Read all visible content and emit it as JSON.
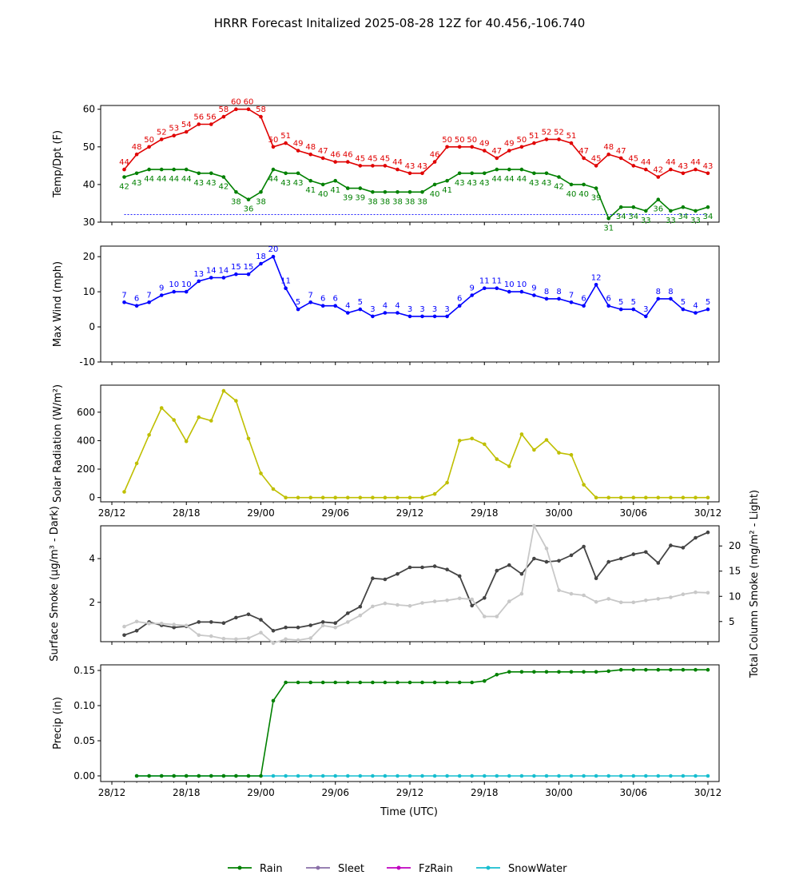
{
  "figure": {
    "title": "HRRR Forecast Initalized 2025-08-28 12Z for 40.456,-106.740",
    "xlabel": "Time (UTC)",
    "x_ticks": [
      {
        "h": 0,
        "label": "28/12"
      },
      {
        "h": 6,
        "label": "28/18"
      },
      {
        "h": 12,
        "label": "29/00"
      },
      {
        "h": 18,
        "label": "29/06"
      },
      {
        "h": 24,
        "label": "29/12"
      },
      {
        "h": 30,
        "label": "29/18"
      },
      {
        "h": 36,
        "label": "30/00"
      },
      {
        "h": 42,
        "label": "30/06"
      },
      {
        "h": 48,
        "label": "30/12"
      }
    ]
  },
  "colors": {
    "temp": "#e00000",
    "dewpoint": "#008000",
    "wind": "#0000ff",
    "solar": "#bfbf00",
    "smoke_dark": "#444444",
    "smoke_light": "#c8c8c8",
    "rain": "#008000",
    "sleet": "#8a6fa8",
    "fzrain": "#c000c0",
    "snowwater": "#17becf"
  },
  "chart_data": [
    {
      "type": "line",
      "ylabel": "Temp/Dpt (F)",
      "ylim": [
        30,
        61
      ],
      "yticks": [
        30,
        40,
        50,
        60
      ],
      "x_hours_start": 1,
      "reference_line": 32,
      "series": [
        {
          "key": "temp",
          "values": [
            44,
            48,
            50,
            52,
            53,
            54,
            56,
            56,
            58,
            60,
            60,
            58,
            50,
            51,
            49,
            48,
            47,
            46,
            46,
            45,
            45,
            45,
            44,
            43,
            43,
            46,
            50,
            50,
            50,
            49,
            47,
            49,
            50,
            51,
            52,
            52,
            51,
            47,
            45,
            48,
            47,
            45,
            44,
            42,
            44,
            43,
            44,
            43
          ]
        },
        {
          "key": "dewpoint",
          "values": [
            42,
            43,
            44,
            44,
            44,
            44,
            43,
            43,
            42,
            38,
            36,
            38,
            44,
            43,
            43,
            41,
            40,
            41,
            39,
            39,
            38,
            38,
            38,
            38,
            38,
            40,
            41,
            43,
            43,
            43,
            44,
            44,
            44,
            43,
            43,
            42,
            40,
            40,
            39,
            31,
            34,
            34,
            33,
            36,
            33,
            34,
            33,
            34
          ]
        }
      ]
    },
    {
      "type": "line",
      "ylabel": "Max Wind (mph)",
      "ylim": [
        -10,
        23
      ],
      "yticks": [
        -10,
        0,
        10,
        20
      ],
      "x_hours_start": 1,
      "series": [
        {
          "key": "wind",
          "values": [
            7,
            6,
            7,
            9,
            10,
            10,
            13,
            14,
            14,
            15,
            15,
            18,
            20,
            11,
            5,
            7,
            6,
            6,
            4,
            5,
            3,
            4,
            4,
            3,
            3,
            3,
            3,
            6,
            9,
            11,
            11,
            10,
            10,
            9,
            8,
            8,
            7,
            6,
            12,
            6,
            5,
            5,
            3,
            8,
            8,
            5,
            4,
            5
          ]
        }
      ]
    },
    {
      "type": "line",
      "ylabel": "Solar Radiation (W/m²)",
      "ylim": [
        -30,
        790
      ],
      "yticks": [
        0,
        200,
        400,
        600
      ],
      "x_hours_start": 1,
      "series": [
        {
          "key": "solar",
          "values": [
            40,
            240,
            440,
            630,
            545,
            395,
            565,
            540,
            750,
            680,
            415,
            170,
            60,
            0,
            0,
            0,
            0,
            0,
            0,
            0,
            0,
            0,
            0,
            0,
            0,
            25,
            105,
            400,
            415,
            375,
            270,
            220,
            445,
            335,
            405,
            315,
            300,
            90,
            0,
            0,
            0,
            0,
            0,
            0,
            0,
            0,
            0,
            0
          ]
        }
      ]
    },
    {
      "type": "line",
      "ylabel_left": "Surface Smoke (μg/m³ - Dark)",
      "ylabel_right": "Total Column Smoke (mg/m² - Light)",
      "ylim": [
        0.2,
        5.5
      ],
      "yticks": [
        2,
        4
      ],
      "ylim_right": [
        1,
        24
      ],
      "yticks_right": [
        5,
        10,
        15,
        20
      ],
      "x_hours_start": 1,
      "series": [
        {
          "key": "smoke_dark",
          "axis": "left",
          "values": [
            0.5,
            0.7,
            1.1,
            0.95,
            0.85,
            0.9,
            1.1,
            1.1,
            1.05,
            1.3,
            1.45,
            1.2,
            0.7,
            0.85,
            0.85,
            0.95,
            1.1,
            1.05,
            1.5,
            1.8,
            3.1,
            3.05,
            3.3,
            3.6,
            3.6,
            3.65,
            3.5,
            3.2,
            1.85,
            2.2,
            3.45,
            3.7,
            3.3,
            4.0,
            3.85,
            3.9,
            4.15,
            4.55,
            3.1,
            3.85,
            4.0,
            4.2,
            4.3,
            3.8,
            4.6,
            4.5,
            4.95,
            5.2
          ]
        },
        {
          "key": "smoke_light",
          "axis": "right",
          "values": [
            4,
            5,
            4.6,
            4.6,
            4.4,
            4.2,
            2.3,
            2.1,
            1.6,
            1.5,
            1.7,
            2.8,
            0.7,
            1.5,
            1.3,
            1.7,
            4.2,
            3.8,
            4.9,
            6.2,
            8.0,
            8.6,
            8.3,
            8.1,
            8.7,
            9.0,
            9.2,
            9.6,
            9.4,
            6.0,
            6.0,
            9.0,
            10.5,
            24.0,
            19.5,
            11.2,
            10.5,
            10.2,
            8.9,
            9.5,
            8.8,
            8.8,
            9.2,
            9.5,
            9.8,
            10.4,
            10.8,
            10.7
          ]
        }
      ]
    },
    {
      "type": "line",
      "ylabel": "Precip (in)",
      "ylim": [
        -0.008,
        0.158
      ],
      "yticks": [
        0.0,
        0.05,
        0.1,
        0.15
      ],
      "tick_labels": [
        "0.00",
        "0.05",
        "0.10",
        "0.15"
      ],
      "x_hours_start": 2,
      "series": [
        {
          "key": "snowwater",
          "name": "SnowWater",
          "values": [
            0,
            0,
            0,
            0,
            0,
            0,
            0,
            0,
            0,
            0,
            0,
            0,
            0,
            0,
            0,
            0,
            0,
            0,
            0,
            0,
            0,
            0,
            0,
            0,
            0,
            0,
            0,
            0,
            0,
            0,
            0,
            0,
            0,
            0,
            0,
            0,
            0,
            0,
            0,
            0,
            0,
            0,
            0,
            0,
            0,
            0,
            0
          ]
        },
        {
          "key": "rain",
          "name": "Rain",
          "values": [
            0,
            0,
            0,
            0,
            0,
            0,
            0,
            0,
            0,
            0,
            0,
            0.107,
            0.133,
            0.133,
            0.133,
            0.133,
            0.133,
            0.133,
            0.133,
            0.133,
            0.133,
            0.133,
            0.133,
            0.133,
            0.133,
            0.133,
            0.133,
            0.133,
            0.135,
            0.144,
            0.148,
            0.148,
            0.148,
            0.148,
            0.148,
            0.148,
            0.148,
            0.148,
            0.149,
            0.151,
            0.151,
            0.151,
            0.151,
            0.151,
            0.151,
            0.151,
            0.151
          ]
        }
      ]
    }
  ],
  "legend": [
    {
      "key": "rain",
      "label": "Rain"
    },
    {
      "key": "sleet",
      "label": "Sleet"
    },
    {
      "key": "fzrain",
      "label": "FzRain"
    },
    {
      "key": "snowwater",
      "label": "SnowWater"
    }
  ]
}
